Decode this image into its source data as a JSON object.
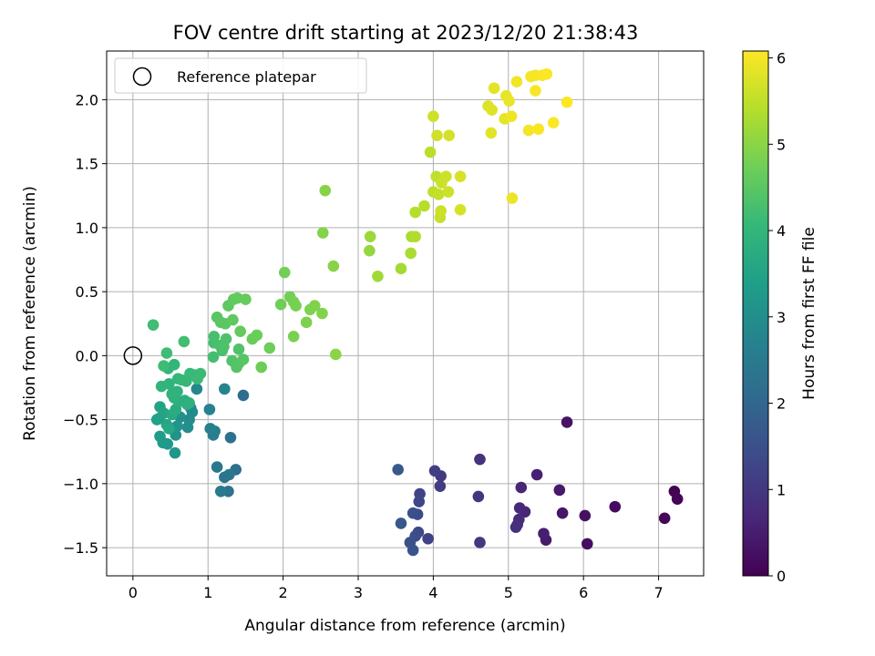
{
  "chart_data": {
    "type": "scatter",
    "title": "FOV centre drift starting at 2023/12/20 21:38:43",
    "xlabel": "Angular distance from reference (arcmin)",
    "ylabel": "Rotation from reference (arcmin)",
    "xlim": [
      -0.35,
      7.6
    ],
    "ylim": [
      -1.72,
      2.38
    ],
    "xticks": [
      0,
      1,
      2,
      3,
      4,
      5,
      6,
      7
    ],
    "yticks": [
      -1.5,
      -1.0,
      -0.5,
      0.0,
      0.5,
      1.0,
      1.5,
      2.0
    ],
    "xtick_labels": [
      "0",
      "1",
      "2",
      "3",
      "4",
      "5",
      "6",
      "7"
    ],
    "ytick_labels": [
      "−1.5",
      "−1.0",
      "−0.5",
      "0.0",
      "0.5",
      "1.0",
      "1.5",
      "2.0"
    ],
    "grid": true,
    "legend": {
      "placement": "top-left",
      "entries": [
        "Reference platepar"
      ]
    },
    "reference_point": {
      "x": 0.0,
      "y": 0.0,
      "marker": "open-circle",
      "color": "#000000"
    },
    "colorbar": {
      "label": "Hours from first FF file",
      "range": [
        0,
        6.08
      ],
      "ticks": [
        0,
        1,
        2,
        3,
        4,
        5,
        6
      ],
      "tick_labels": [
        "0",
        "1",
        "2",
        "3",
        "4",
        "5",
        "6"
      ],
      "colormap": "viridis",
      "colormap_stops": [
        "#440154",
        "#482878",
        "#3e4989",
        "#31688e",
        "#26828e",
        "#1f9e89",
        "#35b779",
        "#6ece58",
        "#b5de2b",
        "#fde725"
      ]
    },
    "series": [
      {
        "points": [
          [
            7.21,
            -1.06,
            0.02
          ],
          [
            7.25,
            -1.12,
            0.05
          ],
          [
            7.08,
            -1.27,
            0.1
          ],
          [
            6.42,
            -1.18,
            0.18
          ],
          [
            6.05,
            -1.47,
            0.23
          ],
          [
            6.02,
            -1.25,
            0.28
          ],
          [
            5.78,
            -0.52,
            0.32
          ],
          [
            5.72,
            -1.23,
            0.37
          ],
          [
            5.68,
            -1.05,
            0.42
          ],
          [
            5.5,
            -1.44,
            0.47
          ],
          [
            5.47,
            -1.39,
            0.52
          ],
          [
            5.38,
            -0.93,
            0.57
          ],
          [
            5.22,
            -1.22,
            0.62
          ],
          [
            5.17,
            -1.03,
            0.66
          ],
          [
            5.15,
            -1.19,
            0.7
          ],
          [
            5.14,
            -1.28,
            0.75
          ],
          [
            5.12,
            -1.32,
            0.8
          ],
          [
            5.1,
            -1.34,
            0.85
          ],
          [
            4.62,
            -0.81,
            0.9
          ],
          [
            4.6,
            -1.1,
            0.95
          ],
          [
            4.62,
            -1.46,
            1.0
          ],
          [
            4.1,
            -0.94,
            1.05
          ],
          [
            4.09,
            -1.02,
            1.1
          ],
          [
            4.02,
            -0.9,
            1.15
          ],
          [
            3.93,
            -1.43,
            1.2
          ],
          [
            3.82,
            -1.08,
            1.25
          ],
          [
            3.81,
            -1.14,
            1.3
          ],
          [
            3.8,
            -1.38,
            1.35
          ],
          [
            3.79,
            -1.24,
            1.4
          ],
          [
            3.76,
            -1.41,
            1.45
          ],
          [
            3.73,
            -1.23,
            1.5
          ],
          [
            3.69,
            -1.46,
            1.55
          ],
          [
            3.73,
            -1.52,
            1.6
          ],
          [
            3.57,
            -1.31,
            1.65
          ],
          [
            3.53,
            -0.89,
            1.7
          ],
          [
            1.47,
            -0.31,
            2.15
          ],
          [
            1.37,
            -0.89,
            2.2
          ],
          [
            1.3,
            -0.64,
            2.25
          ],
          [
            1.27,
            -1.06,
            2.3
          ],
          [
            1.22,
            -0.95,
            2.35
          ],
          [
            1.28,
            -0.93,
            2.4
          ],
          [
            1.12,
            -0.87,
            2.45
          ],
          [
            1.17,
            -1.06,
            2.5
          ],
          [
            1.09,
            -0.59,
            2.55
          ],
          [
            1.07,
            -0.62,
            2.6
          ],
          [
            1.03,
            -0.57,
            2.65
          ],
          [
            1.02,
            -0.42,
            2.7
          ],
          [
            1.22,
            -0.26,
            2.75
          ],
          [
            0.85,
            -0.26,
            2.8
          ],
          [
            0.77,
            -0.41,
            2.85
          ],
          [
            0.79,
            -0.44,
            2.9
          ],
          [
            0.75,
            -0.5,
            2.95
          ],
          [
            0.73,
            -0.56,
            3.0
          ],
          [
            0.63,
            -0.48,
            3.05
          ],
          [
            0.57,
            -0.62,
            3.1
          ],
          [
            0.59,
            -0.55,
            3.15
          ],
          [
            0.56,
            -0.76,
            3.2
          ],
          [
            0.46,
            -0.69,
            3.25
          ],
          [
            0.4,
            -0.68,
            3.3
          ],
          [
            0.36,
            -0.63,
            3.35
          ],
          [
            0.35,
            -0.49,
            3.4
          ],
          [
            0.32,
            -0.5,
            3.45
          ],
          [
            0.36,
            -0.4,
            3.5
          ],
          [
            0.41,
            -0.45,
            3.55
          ],
          [
            0.45,
            -0.54,
            3.6
          ],
          [
            0.48,
            -0.57,
            3.65
          ],
          [
            0.52,
            -0.46,
            3.7
          ],
          [
            0.57,
            -0.42,
            3.75
          ],
          [
            0.61,
            -0.36,
            3.8
          ],
          [
            0.69,
            -0.35,
            3.82
          ],
          [
            0.72,
            -0.38,
            3.84
          ],
          [
            0.75,
            -0.37,
            3.86
          ],
          [
            0.55,
            -0.33,
            3.88
          ],
          [
            0.59,
            -0.28,
            3.9
          ],
          [
            0.52,
            -0.3,
            3.92
          ],
          [
            0.48,
            -0.22,
            3.94
          ],
          [
            0.47,
            -0.1,
            3.96
          ],
          [
            0.38,
            -0.24,
            3.98
          ],
          [
            0.55,
            -0.07,
            4.0
          ],
          [
            0.6,
            -0.18,
            4.02
          ],
          [
            0.65,
            -0.19,
            4.04
          ],
          [
            0.71,
            -0.2,
            4.06
          ],
          [
            0.76,
            -0.14,
            4.08
          ],
          [
            0.81,
            -0.15,
            4.1
          ],
          [
            0.86,
            -0.18,
            4.12
          ],
          [
            0.9,
            -0.14,
            4.14
          ],
          [
            0.41,
            -0.08,
            4.16
          ],
          [
            0.45,
            0.02,
            4.18
          ],
          [
            0.27,
            0.24,
            4.2
          ],
          [
            0.68,
            0.11,
            4.22
          ],
          [
            1.07,
            -0.01,
            4.24
          ],
          [
            1.08,
            0.1,
            4.26
          ],
          [
            1.08,
            0.15,
            4.28
          ],
          [
            1.16,
            0.08,
            4.3
          ],
          [
            1.19,
            0.04,
            4.32
          ],
          [
            1.21,
            0.07,
            4.34
          ],
          [
            1.24,
            0.13,
            4.36
          ],
          [
            1.41,
            0.05,
            4.38
          ],
          [
            1.32,
            -0.04,
            4.4
          ],
          [
            1.38,
            -0.09,
            4.42
          ],
          [
            1.41,
            -0.06,
            4.44
          ],
          [
            1.47,
            -0.03,
            4.46
          ],
          [
            1.12,
            0.3,
            4.48
          ],
          [
            1.17,
            0.26,
            4.5
          ],
          [
            1.23,
            0.25,
            4.52
          ],
          [
            1.27,
            0.39,
            4.54
          ],
          [
            1.33,
            0.28,
            4.56
          ],
          [
            1.34,
            0.44,
            4.58
          ],
          [
            1.39,
            0.45,
            4.6
          ],
          [
            1.43,
            0.19,
            4.62
          ],
          [
            1.5,
            0.44,
            4.64
          ],
          [
            1.59,
            0.13,
            4.66
          ],
          [
            1.65,
            0.16,
            4.68
          ],
          [
            1.71,
            -0.09,
            4.7
          ],
          [
            1.82,
            0.06,
            4.72
          ],
          [
            1.97,
            0.4,
            4.74
          ],
          [
            2.02,
            0.65,
            4.76
          ],
          [
            2.09,
            0.46,
            4.78
          ],
          [
            2.14,
            0.42,
            4.8
          ],
          [
            2.17,
            0.39,
            4.82
          ],
          [
            2.14,
            0.15,
            4.84
          ],
          [
            2.31,
            0.26,
            4.86
          ],
          [
            2.36,
            0.36,
            4.88
          ],
          [
            2.42,
            0.39,
            4.9
          ],
          [
            2.52,
            0.33,
            4.92
          ],
          [
            2.53,
            0.96,
            4.94
          ],
          [
            2.56,
            1.29,
            4.96
          ],
          [
            2.67,
            0.7,
            4.98
          ],
          [
            2.7,
            0.01,
            5.0
          ],
          [
            3.15,
            0.82,
            5.1
          ],
          [
            3.16,
            0.93,
            5.15
          ],
          [
            3.26,
            0.62,
            5.2
          ],
          [
            3.57,
            0.68,
            5.25
          ],
          [
            3.7,
            0.8,
            5.3
          ],
          [
            3.71,
            0.93,
            5.33
          ],
          [
            3.76,
            0.93,
            5.36
          ],
          [
            3.76,
            1.12,
            5.39
          ],
          [
            3.88,
            1.17,
            5.42
          ],
          [
            3.96,
            1.59,
            5.45
          ],
          [
            4.0,
            1.28,
            5.48
          ],
          [
            4.04,
            1.4,
            5.51
          ],
          [
            4.07,
            1.26,
            5.54
          ],
          [
            4.09,
            1.08,
            5.57
          ],
          [
            4.1,
            1.13,
            5.6
          ],
          [
            4.11,
            1.35,
            5.6
          ],
          [
            4.17,
            1.4,
            5.62
          ],
          [
            4.2,
            1.28,
            5.62
          ],
          [
            4.0,
            1.87,
            5.64
          ],
          [
            4.05,
            1.72,
            5.66
          ],
          [
            4.21,
            1.72,
            5.68
          ],
          [
            4.36,
            1.14,
            5.7
          ],
          [
            4.36,
            1.4,
            5.72
          ],
          [
            4.73,
            1.95,
            5.78
          ],
          [
            4.78,
            1.92,
            5.8
          ],
          [
            4.77,
            1.74,
            5.82
          ],
          [
            4.81,
            2.09,
            5.84
          ],
          [
            4.95,
            1.85,
            5.86
          ],
          [
            4.97,
            2.03,
            5.88
          ],
          [
            5.01,
            1.99,
            5.9
          ],
          [
            5.05,
            1.23,
            5.92
          ],
          [
            5.04,
            1.87,
            5.94
          ],
          [
            5.11,
            2.14,
            5.96
          ],
          [
            5.27,
            1.76,
            5.98
          ],
          [
            5.3,
            2.18,
            6.0
          ],
          [
            5.36,
            2.19,
            6.01
          ],
          [
            5.36,
            2.07,
            6.02
          ],
          [
            5.4,
            1.77,
            6.03
          ],
          [
            5.45,
            2.19,
            6.04
          ],
          [
            5.51,
            2.2,
            6.05
          ],
          [
            5.6,
            1.82,
            6.06
          ],
          [
            5.78,
            1.98,
            6.07
          ]
        ]
      }
    ]
  }
}
